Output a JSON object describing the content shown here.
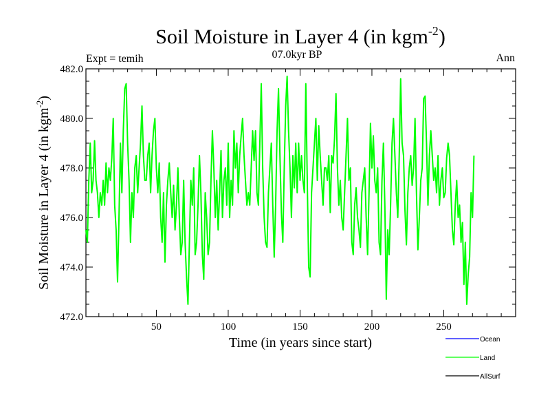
{
  "chart_data": {
    "type": "line",
    "title": "Soil Moisture in Layer 4 (in kgm",
    "title_sup": "-2",
    "title_end": ")",
    "subtitle": "07.0kyr BP",
    "left_label": "Expt = temih",
    "right_label": "Ann",
    "xlabel": "Time (in years since start)",
    "ylabel": "Soil Moisture in Layer 4 (in kgm",
    "ylabel_sup": "-2",
    "ylabel_end": ")",
    "xlim": [
      1,
      300
    ],
    "ylim": [
      472.0,
      482.0
    ],
    "x_ticks": [
      50,
      100,
      150,
      200,
      250
    ],
    "y_ticks": [
      "472.0",
      "474.0",
      "476.0",
      "478.0",
      "480.0",
      "482.0"
    ],
    "legend": [
      {
        "name": "Ocean",
        "color": "#0000ff"
      },
      {
        "name": "Land",
        "color": "#00ff00"
      },
      {
        "name": "AllSurf",
        "color": "#000000"
      }
    ],
    "series": [
      {
        "name": "Land",
        "color": "#00ff00",
        "x_start": 1,
        "x_step": 1,
        "values": [
          475.5,
          475.0,
          477.5,
          479.0,
          477.0,
          477.5,
          479.1,
          477.5,
          477.0,
          476.0,
          477.0,
          476.5,
          477.5,
          476.5,
          478.2,
          477.0,
          478.0,
          477.5,
          478.4,
          480.0,
          476.5,
          475.5,
          473.4,
          476.0,
          479.0,
          477.0,
          479.5,
          481.2,
          481.4,
          479.0,
          477.5,
          475.0,
          477.0,
          476.0,
          478.0,
          478.5,
          477.0,
          478.0,
          479.0,
          480.5,
          478.5,
          477.5,
          477.5,
          478.5,
          479.0,
          477.0,
          478.5,
          479.5,
          480.0,
          478.0,
          477.0,
          478.2,
          476.0,
          475.0,
          477.0,
          474.2,
          476.5,
          477.5,
          478.2,
          477.0,
          476.0,
          477.3,
          475.5,
          476.5,
          478.0,
          476.0,
          474.5,
          475.0,
          477.5,
          475.0,
          473.6,
          472.5,
          475.0,
          477.5,
          476.5,
          478.0,
          474.5,
          475.0,
          476.5,
          478.5,
          477.0,
          474.5,
          473.5,
          477.0,
          476.0,
          474.5,
          475.0,
          477.5,
          479.5,
          478.0,
          476.0,
          477.5,
          475.5,
          477.0,
          478.7,
          476.0,
          477.5,
          478.0,
          476.5,
          479.0,
          476.0,
          477.5,
          476.5,
          479.5,
          478.0,
          479.0,
          477.0,
          478.5,
          479.3,
          480.0,
          478.5,
          477.5,
          476.5,
          477.0,
          476.5,
          478.0,
          479.5,
          478.3,
          479.5,
          477.0,
          476.5,
          479.0,
          481.4,
          478.0,
          476.0,
          475.0,
          474.8,
          477.0,
          478.0,
          479.0,
          476.5,
          474.4,
          476.5,
          479.5,
          481.2,
          478.5,
          476.2,
          475.0,
          478.0,
          480.5,
          481.7,
          479.5,
          478.0,
          476.0,
          478.5,
          477.2,
          479.0,
          477.0,
          479.0,
          477.5,
          478.5,
          477.5,
          477.0,
          481.4,
          477.5,
          474.0,
          473.6,
          477.0,
          478.0,
          479.0,
          480.0,
          477.5,
          479.7,
          478.5,
          477.5,
          476.5,
          478.0,
          478.0,
          477.5,
          478.5,
          476.2,
          478.5,
          478.2,
          479.2,
          481.0,
          478.0,
          476.5,
          477.5,
          476.0,
          475.5,
          477.0,
          478.5,
          480.0,
          477.5,
          478.0,
          475.0,
          474.5,
          476.5,
          477.2,
          476.0,
          475.5,
          474.8,
          477.0,
          477.5,
          478.0,
          476.0,
          474.5,
          477.0,
          479.8,
          478.0,
          479.3,
          477.5,
          477.0,
          478.0,
          475.0,
          474.5,
          477.5,
          479.0,
          476.5,
          472.7,
          475.5,
          474.5,
          476.5,
          479.0,
          480.0,
          478.5,
          477.0,
          476.0,
          478.5,
          481.6,
          479.0,
          478.5,
          476.3,
          474.9,
          477.0,
          478.0,
          478.5,
          477.3,
          478.0,
          480.0,
          477.0,
          474.7,
          476.0,
          477.5,
          478.0,
          480.8,
          480.9,
          479.0,
          476.5,
          478.5,
          479.5,
          478.5,
          477.5,
          478.0,
          477.0,
          478.5,
          476.5,
          477.5,
          478.0,
          476.8,
          477.0,
          478.4,
          479.0,
          478.5,
          477.0,
          475.5,
          474.9,
          476.5,
          477.5,
          476.0,
          476.5,
          475.0,
          475.8,
          473.3,
          475.0,
          472.5,
          473.7,
          474.4,
          477.0,
          476.0,
          478.5
        ]
      },
      {
        "name": "Ocean",
        "color": "#0000ff",
        "values": []
      },
      {
        "name": "AllSurf",
        "color": "#000000",
        "values": []
      }
    ]
  }
}
